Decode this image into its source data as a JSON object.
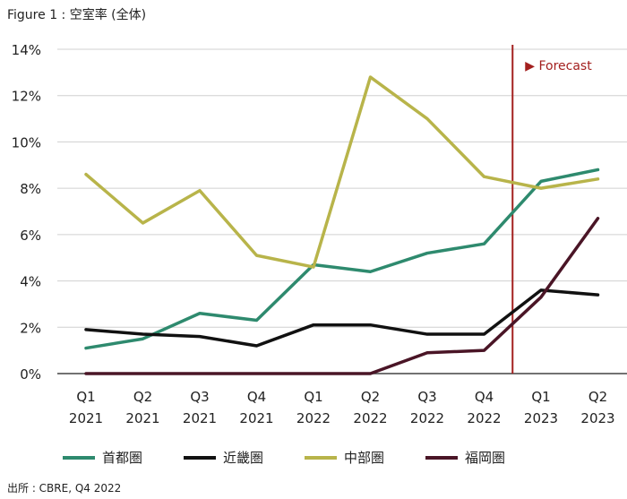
{
  "title": "Figure 1 : 空室率 (全体)",
  "source": "出所 : CBRE, Q4 2022",
  "forecast_label": "▶ Forecast",
  "chart_data": {
    "type": "line",
    "categories": [
      [
        "Q1",
        "2021"
      ],
      [
        "Q2",
        "2021"
      ],
      [
        "Q3",
        "2021"
      ],
      [
        "Q4",
        "2021"
      ],
      [
        "Q1",
        "2022"
      ],
      [
        "Q2",
        "2022"
      ],
      [
        "Q3",
        "2022"
      ],
      [
        "Q4",
        "2022"
      ],
      [
        "Q1",
        "2023"
      ],
      [
        "Q2",
        "2023"
      ]
    ],
    "yticks": [
      "0%",
      "2%",
      "4%",
      "6%",
      "8%",
      "10%",
      "12%",
      "14%"
    ],
    "ylim": [
      0,
      14
    ],
    "forecast_start_after_index": 7,
    "grid": "horizontal",
    "legend_position": "bottom",
    "series": [
      {
        "name": "首都圏",
        "color": "#2e8a6e",
        "values": [
          1.1,
          1.5,
          2.6,
          2.3,
          4.7,
          4.4,
          5.2,
          5.6,
          8.3,
          8.8
        ]
      },
      {
        "name": "近畿圏",
        "color": "#111111",
        "values": [
          1.9,
          1.7,
          1.6,
          1.2,
          2.1,
          2.1,
          1.7,
          1.7,
          3.6,
          3.4
        ]
      },
      {
        "name": "中部圏",
        "color": "#b8b44a",
        "values": [
          8.6,
          6.5,
          7.9,
          5.1,
          4.6,
          12.8,
          11.0,
          8.5,
          8.0,
          8.4
        ]
      },
      {
        "name": "福岡圏",
        "color": "#4a1526",
        "values": [
          0.0,
          0.0,
          0.0,
          0.0,
          0.0,
          0.0,
          0.9,
          1.0,
          3.3,
          6.7
        ]
      }
    ]
  }
}
